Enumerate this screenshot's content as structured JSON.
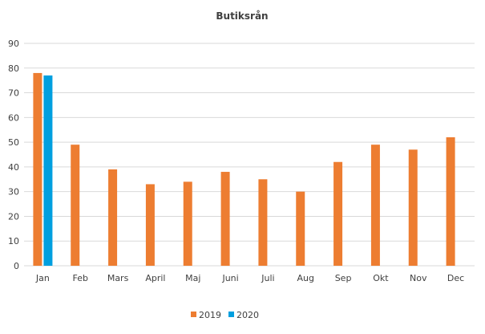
{
  "chart_data": {
    "type": "bar",
    "title": "Butiksrån",
    "xlabel": "",
    "ylabel": "",
    "ylim": [
      0,
      90
    ],
    "yticks": [
      0,
      10,
      20,
      30,
      40,
      50,
      60,
      70,
      80,
      90
    ],
    "grid": true,
    "legend_position": "bottom",
    "categories": [
      "Jan",
      "Feb",
      "Mars",
      "April",
      "Maj",
      "Juni",
      "Juli",
      "Aug",
      "Sep",
      "Okt",
      "Nov",
      "Dec"
    ],
    "series": [
      {
        "name": "2019",
        "color": "#ed7d31",
        "values": [
          78,
          49,
          39,
          33,
          34,
          38,
          35,
          30,
          42,
          49,
          47,
          52
        ]
      },
      {
        "name": "2020",
        "color": "#009fdf",
        "values": [
          77,
          null,
          null,
          null,
          null,
          null,
          null,
          null,
          null,
          null,
          null,
          null
        ]
      }
    ]
  }
}
